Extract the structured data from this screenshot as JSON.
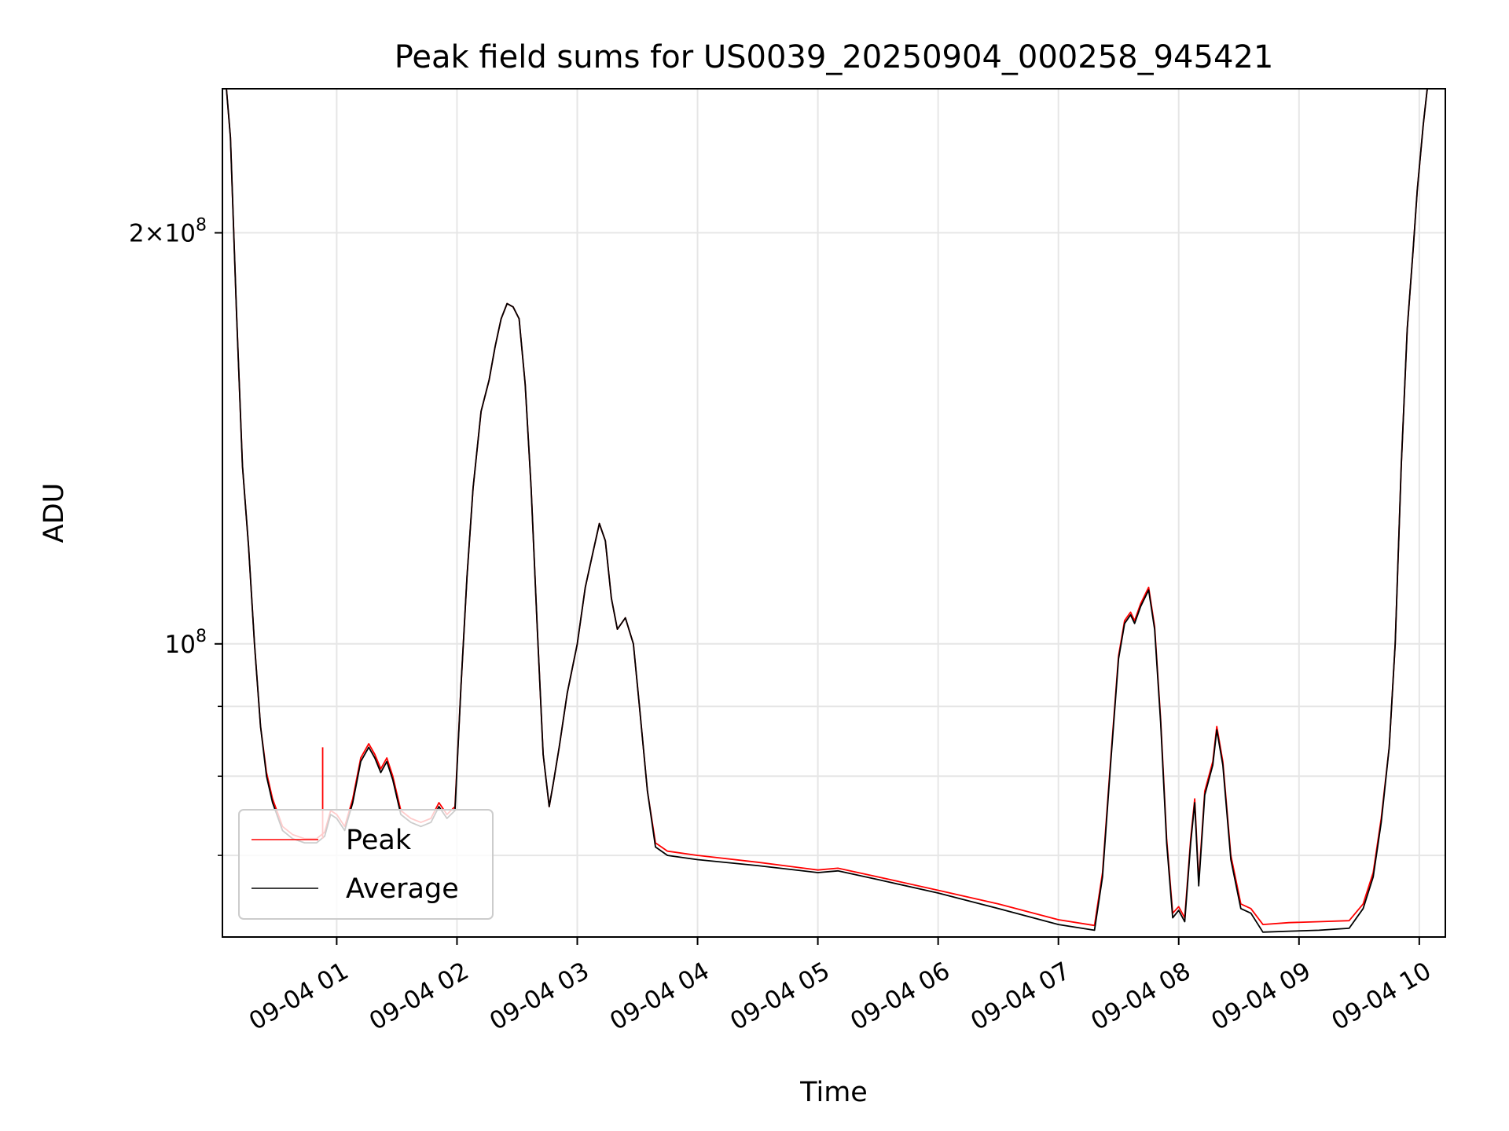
{
  "chart_data": {
    "type": "line",
    "title": "Peak field sums for US0039_20250904_000258_945421",
    "xlabel": "Time",
    "ylabel": "ADU",
    "y_scale": "log",
    "ylim": [
      61000000,
      255000000
    ],
    "xlim": [
      "09-04 00:03",
      "09-04 10:13"
    ],
    "grid": true,
    "legend_position": "lower-left",
    "x_ticks": [
      "09-04 01",
      "09-04 02",
      "09-04 03",
      "09-04 04",
      "09-04 05",
      "09-04 06",
      "09-04 07",
      "09-04 08",
      "09-04 09",
      "09-04 10"
    ],
    "y_ticks_labeled": [
      {
        "value": 100000000,
        "label_base": "10",
        "label_exp": "8"
      },
      {
        "value": 200000000,
        "label_base": "2×10",
        "label_exp": "8"
      }
    ],
    "y_ticks_minor": [
      70000000,
      80000000,
      90000000
    ],
    "series": [
      {
        "name": "Peak",
        "color": "#ff0000",
        "points": [
          [
            "09-04 00:05",
            255000000
          ],
          [
            "09-04 00:07",
            235000000
          ],
          [
            "09-04 00:10",
            175000000
          ],
          [
            "09-04 00:13",
            135000000
          ],
          [
            "09-04 00:16",
            118000000
          ],
          [
            "09-04 00:19",
            100000000
          ],
          [
            "09-04 00:22",
            87000000
          ],
          [
            "09-04 00:25",
            80500000
          ],
          [
            "09-04 00:28",
            77000000
          ],
          [
            "09-04 00:33",
            73500000
          ],
          [
            "09-04 00:38",
            72500000
          ],
          [
            "09-04 00:44",
            72000000
          ],
          [
            "09-04 00:50",
            72000000
          ],
          [
            "09-04 00:54",
            72800000
          ],
          [
            "09-04 00:57",
            75500000
          ],
          [
            "09-04 01:00",
            75000000
          ],
          [
            "09-04 01:04",
            73500000
          ],
          [
            "09-04 01:08",
            77000000
          ],
          [
            "09-04 01:12",
            82500000
          ],
          [
            "09-04 01:16",
            84500000
          ],
          [
            "09-04 01:19",
            83000000
          ],
          [
            "09-04 01:22",
            81000000
          ],
          [
            "09-04 01:25",
            82500000
          ],
          [
            "09-04 01:28",
            80000000
          ],
          [
            "09-04 01:32",
            75500000
          ],
          [
            "09-04 01:37",
            74500000
          ],
          [
            "09-04 01:42",
            74000000
          ],
          [
            "09-04 01:47",
            74500000
          ],
          [
            "09-04 01:51",
            76500000
          ],
          [
            "09-04 01:55",
            75000000
          ],
          [
            "09-04 01:59",
            76000000
          ],
          [
            "09-04 02:02",
            93000000
          ],
          [
            "09-04 02:05",
            112000000
          ],
          [
            "09-04 02:08",
            130000000
          ],
          [
            "09-04 02:12",
            148000000
          ],
          [
            "09-04 02:16",
            156000000
          ],
          [
            "09-04 02:19",
            165000000
          ],
          [
            "09-04 02:22",
            173000000
          ],
          [
            "09-04 02:25",
            177500000
          ],
          [
            "09-04 02:28",
            176500000
          ],
          [
            "09-04 02:31",
            173000000
          ],
          [
            "09-04 02:34",
            155000000
          ],
          [
            "09-04 02:37",
            130000000
          ],
          [
            "09-04 02:40",
            103000000
          ],
          [
            "09-04 02:43",
            83000000
          ],
          [
            "09-04 02:46",
            76000000
          ],
          [
            "09-04 02:48",
            79000000
          ],
          [
            "09-04 02:51",
            84000000
          ],
          [
            "09-04 02:55",
            92000000
          ],
          [
            "09-04 03:00",
            100000000
          ],
          [
            "09-04 03:04",
            110000000
          ],
          [
            "09-04 03:08",
            117000000
          ],
          [
            "09-04 03:11",
            122500000
          ],
          [
            "09-04 03:14",
            119000000
          ],
          [
            "09-04 03:17",
            108000000
          ],
          [
            "09-04 03:20",
            102500000
          ],
          [
            "09-04 03:24",
            104500000
          ],
          [
            "09-04 03:28",
            100000000
          ],
          [
            "09-04 03:31",
            90000000
          ],
          [
            "09-04 03:35",
            78000000
          ],
          [
            "09-04 03:39",
            71500000
          ],
          [
            "09-04 03:45",
            70500000
          ],
          [
            "09-04 04:00",
            70000000
          ],
          [
            "09-04 04:30",
            69200000
          ],
          [
            "09-04 05:00",
            68300000
          ],
          [
            "09-04 05:10",
            68500000
          ],
          [
            "09-04 05:30",
            67500000
          ],
          [
            "09-04 06:00",
            66000000
          ],
          [
            "09-04 06:30",
            64500000
          ],
          [
            "09-04 07:00",
            62800000
          ],
          [
            "09-04 07:18",
            62200000
          ],
          [
            "09-04 07:22",
            68000000
          ],
          [
            "09-04 07:26",
            82000000
          ],
          [
            "09-04 07:30",
            98000000
          ],
          [
            "09-04 07:33",
            104000000
          ],
          [
            "09-04 07:36",
            105500000
          ],
          [
            "09-04 07:38",
            104000000
          ],
          [
            "09-04 07:41",
            107000000
          ],
          [
            "09-04 07:43",
            108500000
          ],
          [
            "09-04 07:45",
            110000000
          ],
          [
            "09-04 07:48",
            103000000
          ],
          [
            "09-04 07:51",
            88000000
          ],
          [
            "09-04 07:54",
            72000000
          ],
          [
            "09-04 07:57",
            63500000
          ],
          [
            "09-04 08:00",
            64200000
          ],
          [
            "09-04 08:03",
            63000000
          ],
          [
            "09-04 08:06",
            72000000
          ],
          [
            "09-04 08:08",
            77000000
          ],
          [
            "09-04 08:10",
            67000000
          ],
          [
            "09-04 08:13",
            78000000
          ],
          [
            "09-04 08:17",
            82000000
          ],
          [
            "09-04 08:19",
            87000000
          ],
          [
            "09-04 08:22",
            82000000
          ],
          [
            "09-04 08:26",
            70000000
          ],
          [
            "09-04 08:31",
            64500000
          ],
          [
            "09-04 08:36",
            64000000
          ],
          [
            "09-04 08:42",
            62300000
          ],
          [
            "09-04 08:55",
            62500000
          ],
          [
            "09-04 09:10",
            62600000
          ],
          [
            "09-04 09:25",
            62700000
          ],
          [
            "09-04 09:32",
            64500000
          ],
          [
            "09-04 09:37",
            68000000
          ],
          [
            "09-04 09:41",
            74500000
          ],
          [
            "09-04 09:45",
            84000000
          ],
          [
            "09-04 09:48",
            100000000
          ],
          [
            "09-04 09:51",
            135000000
          ],
          [
            "09-04 09:54",
            170000000
          ],
          [
            "09-04 09:57",
            195000000
          ],
          [
            "09-04 09:59",
            215000000
          ],
          [
            "09-04 10:02",
            240000000
          ],
          [
            "09-04 10:04",
            255000000
          ]
        ]
      },
      {
        "name": "Average",
        "color": "#000000",
        "points": [
          [
            "09-04 00:05",
            255000000
          ],
          [
            "09-04 00:07",
            235000000
          ],
          [
            "09-04 00:10",
            175000000
          ],
          [
            "09-04 00:13",
            135000000
          ],
          [
            "09-04 00:16",
            118000000
          ],
          [
            "09-04 00:19",
            100000000
          ],
          [
            "09-04 00:22",
            87000000
          ],
          [
            "09-04 00:25",
            80000000
          ],
          [
            "09-04 00:28",
            76500000
          ],
          [
            "09-04 00:33",
            73000000
          ],
          [
            "09-04 00:38",
            72000000
          ],
          [
            "09-04 00:44",
            71500000
          ],
          [
            "09-04 00:50",
            71500000
          ],
          [
            "09-04 00:54",
            72300000
          ],
          [
            "09-04 00:57",
            75000000
          ],
          [
            "09-04 01:00",
            74500000
          ],
          [
            "09-04 01:04",
            73000000
          ],
          [
            "09-04 01:08",
            76500000
          ],
          [
            "09-04 01:12",
            82000000
          ],
          [
            "09-04 01:16",
            84000000
          ],
          [
            "09-04 01:19",
            82500000
          ],
          [
            "09-04 01:22",
            80500000
          ],
          [
            "09-04 01:25",
            82000000
          ],
          [
            "09-04 01:28",
            79500000
          ],
          [
            "09-04 01:32",
            75000000
          ],
          [
            "09-04 01:37",
            74000000
          ],
          [
            "09-04 01:42",
            73500000
          ],
          [
            "09-04 01:47",
            74000000
          ],
          [
            "09-04 01:51",
            76000000
          ],
          [
            "09-04 01:55",
            74500000
          ],
          [
            "09-04 01:59",
            75500000
          ],
          [
            "09-04 02:02",
            93000000
          ],
          [
            "09-04 02:05",
            112000000
          ],
          [
            "09-04 02:08",
            130000000
          ],
          [
            "09-04 02:12",
            148000000
          ],
          [
            "09-04 02:16",
            156000000
          ],
          [
            "09-04 02:19",
            165000000
          ],
          [
            "09-04 02:22",
            173000000
          ],
          [
            "09-04 02:25",
            177500000
          ],
          [
            "09-04 02:28",
            176500000
          ],
          [
            "09-04 02:31",
            173000000
          ],
          [
            "09-04 02:34",
            155000000
          ],
          [
            "09-04 02:37",
            130000000
          ],
          [
            "09-04 02:40",
            103000000
          ],
          [
            "09-04 02:43",
            83000000
          ],
          [
            "09-04 02:46",
            76000000
          ],
          [
            "09-04 02:48",
            79000000
          ],
          [
            "09-04 02:51",
            84000000
          ],
          [
            "09-04 02:55",
            92000000
          ],
          [
            "09-04 03:00",
            100000000
          ],
          [
            "09-04 03:04",
            110000000
          ],
          [
            "09-04 03:08",
            117000000
          ],
          [
            "09-04 03:11",
            122500000
          ],
          [
            "09-04 03:14",
            119000000
          ],
          [
            "09-04 03:17",
            108000000
          ],
          [
            "09-04 03:20",
            102500000
          ],
          [
            "09-04 03:24",
            104500000
          ],
          [
            "09-04 03:28",
            100000000
          ],
          [
            "09-04 03:31",
            90000000
          ],
          [
            "09-04 03:35",
            78000000
          ],
          [
            "09-04 03:39",
            71000000
          ],
          [
            "09-04 03:45",
            70000000
          ],
          [
            "09-04 04:00",
            69500000
          ],
          [
            "09-04 04:30",
            68800000
          ],
          [
            "09-04 05:00",
            68000000
          ],
          [
            "09-04 05:10",
            68200000
          ],
          [
            "09-04 05:30",
            67200000
          ],
          [
            "09-04 06:00",
            65700000
          ],
          [
            "09-04 06:30",
            64000000
          ],
          [
            "09-04 07:00",
            62300000
          ],
          [
            "09-04 07:18",
            61700000
          ],
          [
            "09-04 07:22",
            67500000
          ],
          [
            "09-04 07:26",
            81500000
          ],
          [
            "09-04 07:30",
            97500000
          ],
          [
            "09-04 07:33",
            103500000
          ],
          [
            "09-04 07:36",
            105000000
          ],
          [
            "09-04 07:38",
            103500000
          ],
          [
            "09-04 07:41",
            106500000
          ],
          [
            "09-04 07:43",
            108000000
          ],
          [
            "09-04 07:45",
            109500000
          ],
          [
            "09-04 07:48",
            102500000
          ],
          [
            "09-04 07:51",
            87500000
          ],
          [
            "09-04 07:54",
            71500000
          ],
          [
            "09-04 07:57",
            63000000
          ],
          [
            "09-04 08:00",
            63800000
          ],
          [
            "09-04 08:03",
            62600000
          ],
          [
            "09-04 08:06",
            71500000
          ],
          [
            "09-04 08:08",
            76500000
          ],
          [
            "09-04 08:10",
            66500000
          ],
          [
            "09-04 08:13",
            77500000
          ],
          [
            "09-04 08:17",
            81500000
          ],
          [
            "09-04 08:19",
            86500000
          ],
          [
            "09-04 08:22",
            81500000
          ],
          [
            "09-04 08:26",
            69500000
          ],
          [
            "09-04 08:31",
            64000000
          ],
          [
            "09-04 08:36",
            63500000
          ],
          [
            "09-04 08:42",
            61500000
          ],
          [
            "09-04 08:55",
            61600000
          ],
          [
            "09-04 09:10",
            61700000
          ],
          [
            "09-04 09:25",
            61900000
          ],
          [
            "09-04 09:32",
            64000000
          ],
          [
            "09-04 09:37",
            67500000
          ],
          [
            "09-04 09:41",
            74000000
          ],
          [
            "09-04 09:45",
            84000000
          ],
          [
            "09-04 09:48",
            100000000
          ],
          [
            "09-04 09:51",
            135000000
          ],
          [
            "09-04 09:54",
            170000000
          ],
          [
            "09-04 09:57",
            195000000
          ],
          [
            "09-04 09:59",
            215000000
          ],
          [
            "09-04 10:02",
            240000000
          ],
          [
            "09-04 10:04",
            255000000
          ]
        ]
      }
    ],
    "annotations": [
      {
        "series": "Peak",
        "kind": "spike",
        "x": "09-04 00:53",
        "y_top": 84000000,
        "y_base": 72000000
      }
    ]
  }
}
